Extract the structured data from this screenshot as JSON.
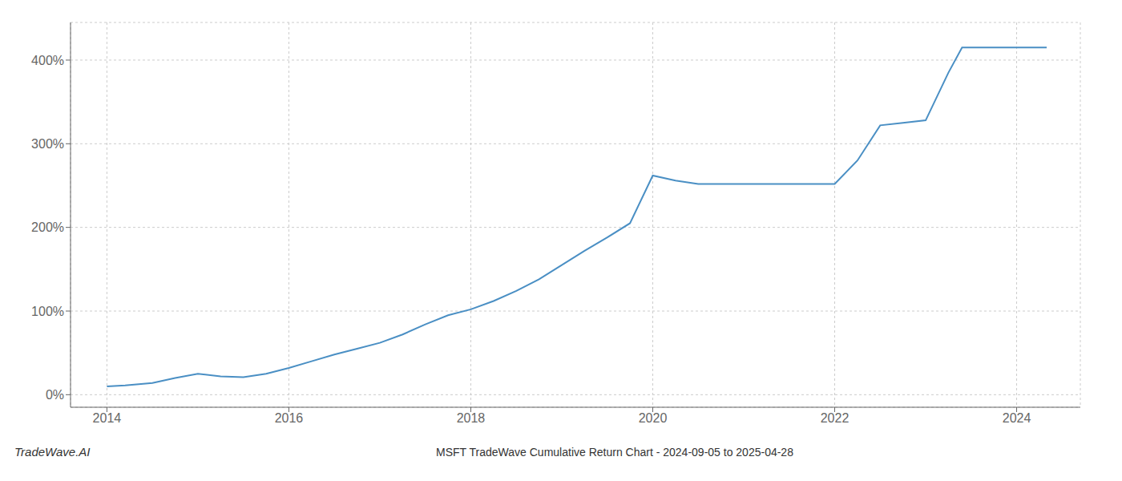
{
  "chart_data": {
    "type": "line",
    "title": "MSFT TradeWave Cumulative Return Chart - 2024-09-05 to 2025-04-28",
    "annotations": [
      "TradeWave.AI"
    ],
    "x": [
      2014.0,
      2014.2,
      2014.5,
      2014.75,
      2015.0,
      2015.25,
      2015.5,
      2015.75,
      2016.0,
      2016.25,
      2016.5,
      2016.75,
      2017.0,
      2017.25,
      2017.5,
      2017.75,
      2018.0,
      2018.25,
      2018.5,
      2018.75,
      2019.0,
      2019.25,
      2019.5,
      2019.75,
      2020.0,
      2020.25,
      2020.5,
      2020.75,
      2021.0,
      2021.25,
      2021.5,
      2022.0,
      2022.25,
      2022.5,
      2022.75,
      2023.0,
      2023.25,
      2023.4,
      2023.5,
      2023.75,
      2024.0,
      2024.25,
      2024.33
    ],
    "values": [
      10,
      11,
      14,
      20,
      25,
      22,
      21,
      25,
      32,
      40,
      48,
      55,
      62,
      72,
      84,
      95,
      102,
      112,
      124,
      138,
      155,
      172,
      188,
      205,
      262,
      256,
      252,
      252,
      252,
      252,
      252,
      252,
      280,
      322,
      325,
      328,
      385,
      415,
      415,
      415,
      415,
      415,
      415
    ],
    "color": "#4a8fc4",
    "xlim": [
      2013.6,
      2024.7
    ],
    "xticks": [
      2014,
      2016,
      2018,
      2020,
      2022,
      2024
    ],
    "ylim": [
      -15,
      445
    ],
    "yticks": [
      {
        "value": 0,
        "label": "0%"
      },
      {
        "value": 100,
        "label": "100%"
      },
      {
        "value": 200,
        "label": "200%"
      },
      {
        "value": 300,
        "label": "300%"
      },
      {
        "value": 400,
        "label": "400%"
      }
    ],
    "grid": true
  }
}
